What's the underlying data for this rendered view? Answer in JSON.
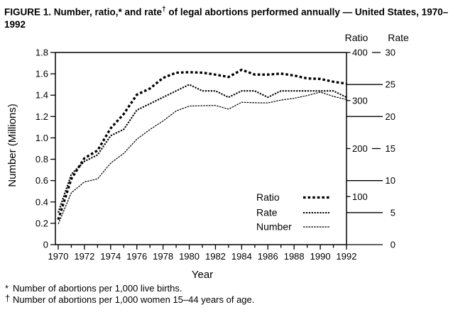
{
  "figure": {
    "title_pre": "FIGURE 1. Number, ratio,* and rate",
    "title_sup": "†",
    "title_post": " of legal abortions performed annually — United States, 1970–1992"
  },
  "axes_headers": {
    "ratio": "Ratio",
    "rate": "Rate"
  },
  "labels": {
    "y_left": "Number (Millions)",
    "x": "Year"
  },
  "footnotes": [
    {
      "marker": "*",
      "text": "Number of abortions per 1,000 live births."
    },
    {
      "marker": "†",
      "text": "Number of abortions per 1,000 women 15–44 years of age."
    }
  ],
  "colors": {
    "ink": "#000000",
    "background": "#ffffff"
  },
  "chart_data": {
    "type": "line",
    "title": "FIGURE 1. Number, ratio, and rate of legal abortions performed annually — United States, 1970–1992",
    "xlabel": "Year",
    "grid": false,
    "legend_position": "inside lower-right",
    "x": [
      1970,
      1971,
      1972,
      1973,
      1974,
      1975,
      1976,
      1977,
      1978,
      1979,
      1980,
      1981,
      1982,
      1983,
      1984,
      1985,
      1986,
      1987,
      1988,
      1989,
      1990,
      1991,
      1992
    ],
    "series": [
      {
        "name": "Ratio",
        "axis": "ratio",
        "style": "thick-dashed",
        "values": [
          52,
          137,
          180,
          196,
          242,
          272,
          312,
          325,
          347,
          358,
          359,
          358,
          354,
          349,
          364,
          354,
          354,
          356,
          352,
          346,
          345,
          339,
          335
        ]
      },
      {
        "name": "Rate",
        "axis": "rate",
        "style": "medium-dotted",
        "values": [
          5,
          11,
          13,
          14,
          17,
          18,
          21,
          22,
          23,
          24,
          25,
          24,
          24,
          23,
          24,
          24,
          23,
          24,
          24,
          24,
          24,
          24,
          23
        ]
      },
      {
        "name": "Number",
        "axis": "number",
        "style": "thin",
        "values": [
          0.193,
          0.486,
          0.587,
          0.616,
          0.763,
          0.855,
          0.988,
          1.079,
          1.158,
          1.252,
          1.298,
          1.301,
          1.304,
          1.269,
          1.334,
          1.329,
          1.328,
          1.354,
          1.371,
          1.397,
          1.429,
          1.389,
          1.359
        ]
      }
    ],
    "axes": {
      "number": {
        "label": "Number (Millions)",
        "min": 0,
        "max": 1.8,
        "ticks": [
          0,
          0.2,
          0.4,
          0.6,
          0.8,
          1.0,
          1.2,
          1.4,
          1.6,
          1.8
        ],
        "tick_labels": [
          "0",
          "0.2",
          "0.4",
          "0.6",
          "0.8",
          "1.0",
          "1.2",
          "1.4",
          "1.6",
          "1.8"
        ]
      },
      "ratio": {
        "label": "Ratio",
        "min": 0,
        "max": 400,
        "ticks": [
          100,
          200,
          300,
          400
        ],
        "tick_labels": [
          "100",
          "200",
          "300",
          "400"
        ]
      },
      "rate": {
        "label": "Rate",
        "min": 0,
        "max": 30,
        "ticks": [
          0,
          5,
          10,
          15,
          20,
          25,
          30
        ],
        "tick_labels": [
          "0",
          "5",
          "10",
          "15",
          "20",
          "25",
          "30"
        ]
      },
      "x": {
        "label": "Year",
        "min": 1970,
        "max": 1992,
        "label_step": 2,
        "tick_labels": [
          "1970",
          "1972",
          "1974",
          "1976",
          "1978",
          "1980",
          "1982",
          "1984",
          "1986",
          "1988",
          "1990",
          "1992"
        ]
      }
    }
  }
}
